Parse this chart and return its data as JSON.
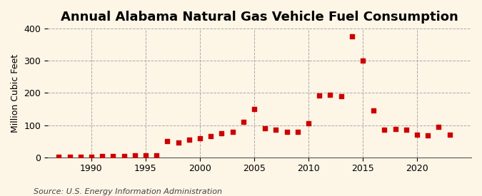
{
  "title": "Annual Alabama Natural Gas Vehicle Fuel Consumption",
  "ylabel": "Million Cubic Feet",
  "source": "Source: U.S. Energy Information Administration",
  "background_color": "#fdf5e6",
  "marker_color": "#cc0000",
  "years": [
    1987,
    1988,
    1989,
    1990,
    1991,
    1992,
    1993,
    1994,
    1995,
    1996,
    1997,
    1998,
    1999,
    2000,
    2001,
    2002,
    2003,
    2004,
    2005,
    2006,
    2007,
    2008,
    2009,
    2010,
    2011,
    2012,
    2013,
    2014,
    2015,
    2016,
    2017,
    2018,
    2019,
    2020,
    2021,
    2022,
    2023
  ],
  "values": [
    1,
    1,
    2,
    2,
    3,
    4,
    5,
    6,
    6,
    7,
    50,
    45,
    55,
    60,
    65,
    75,
    80,
    110,
    150,
    90,
    85,
    80,
    80,
    105,
    193,
    195,
    190,
    375,
    300,
    145,
    85,
    88,
    85,
    70,
    68,
    95,
    70
  ],
  "xlim": [
    1986,
    2025
  ],
  "ylim": [
    0,
    400
  ],
  "yticks": [
    0,
    100,
    200,
    300,
    400
  ],
  "xticks": [
    1990,
    1995,
    2000,
    2005,
    2010,
    2015,
    2020
  ],
  "title_fontsize": 13,
  "label_fontsize": 9,
  "tick_fontsize": 9,
  "source_fontsize": 8
}
